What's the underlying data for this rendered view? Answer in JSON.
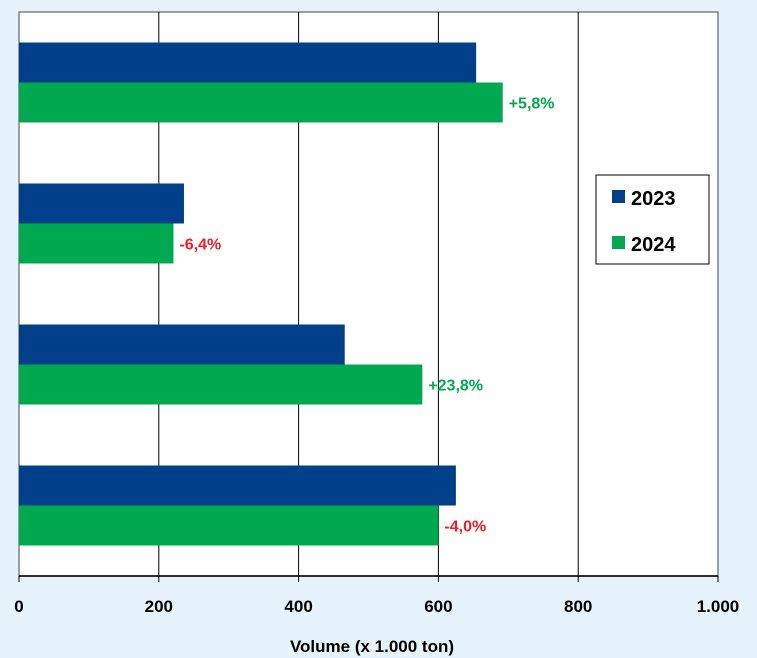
{
  "chart_data": {
    "type": "bar",
    "orientation": "horizontal",
    "title": "",
    "xlabel": "Volume (x 1.000 ton)",
    "ylabel": "",
    "xlim": [
      0,
      1000
    ],
    "x_ticks": [
      "0",
      "200",
      "400",
      "600",
      "800",
      "1.000"
    ],
    "grid": "vertical",
    "legend_position": "right",
    "categories": [
      "",
      "",
      "",
      ""
    ],
    "series": [
      {
        "name": "2023",
        "color": "#003f8a",
        "values": [
          654,
          236,
          466,
          625
        ]
      },
      {
        "name": "2024",
        "color": "#00a950",
        "values": [
          692,
          221,
          577,
          600
        ]
      }
    ],
    "annotations": [
      {
        "text": "+5,8%",
        "color": "#00a950"
      },
      {
        "text": "-6,4%",
        "color": "#ee1c25"
      },
      {
        "text": "+23,8%",
        "color": "#00a950"
      },
      {
        "text": "-4,0%",
        "color": "#ee1c25"
      }
    ]
  }
}
